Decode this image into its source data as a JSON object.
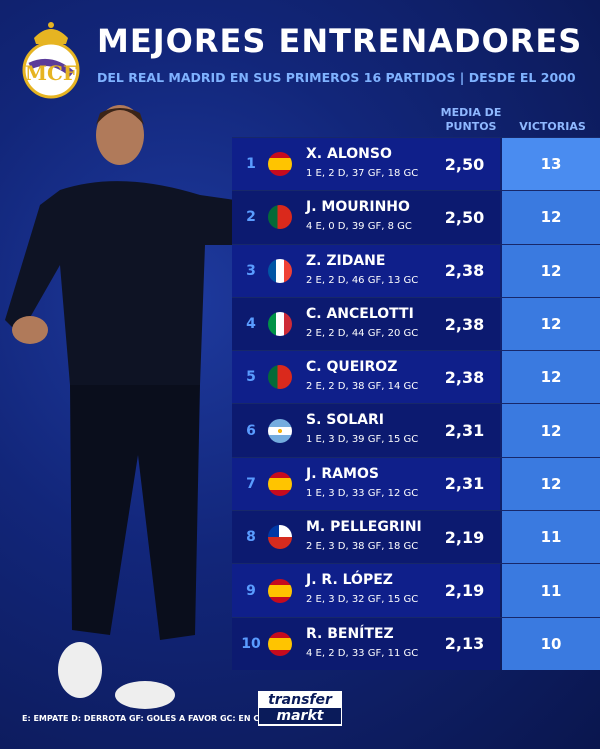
{
  "header": {
    "title": "MEJORES ENTRENADORES",
    "subtitle": "DEL REAL MADRID EN SUS PRIMEROS 16 PARTIDOS | DESDE EL 2000"
  },
  "columns": {
    "avg": "MEDIA DE PUNTOS",
    "avg_l1": "MEDIA DE",
    "avg_l2": "PUNTOS",
    "wins": "VICTORIAS"
  },
  "rows": [
    {
      "rank": "1",
      "flag": "spain",
      "name": "X. ALONSO",
      "stats": "1 E,  2 D, 37 GF, 18 GC",
      "avg": "2,50",
      "wins": "13"
    },
    {
      "rank": "2",
      "flag": "portugal",
      "name": "J. MOURINHO",
      "stats": "4 E, 0 D, 39 GF, 8 GC",
      "avg": "2,50",
      "wins": "12"
    },
    {
      "rank": "3",
      "flag": "france",
      "name": "Z. ZIDANE",
      "stats": "2 E, 2 D, 46 GF, 13 GC",
      "avg": "2,38",
      "wins": "12"
    },
    {
      "rank": "4",
      "flag": "italy",
      "name": "C. ANCELOTTI",
      "stats": "2 E, 2 D, 44 GF, 20 GC",
      "avg": "2,38",
      "wins": "12"
    },
    {
      "rank": "5",
      "flag": "portugal",
      "name": "C. QUEIROZ",
      "stats": "2 E, 2 D, 38 GF, 14 GC",
      "avg": "2,38",
      "wins": "12"
    },
    {
      "rank": "6",
      "flag": "argentina",
      "name": "S. SOLARI",
      "stats": "1 E, 3 D, 39 GF, 15 GC",
      "avg": "2,31",
      "wins": "12"
    },
    {
      "rank": "7",
      "flag": "spain",
      "name": "J. RAMOS",
      "stats": "1 E, 3 D, 33 GF, 12 GC",
      "avg": "2,31",
      "wins": "12"
    },
    {
      "rank": "8",
      "flag": "chile",
      "name": "M. PELLEGRINI",
      "stats": "2 E, 3 D, 38 GF, 18 GC",
      "avg": "2,19",
      "wins": "11"
    },
    {
      "rank": "9",
      "flag": "spain",
      "name": "J. R. LÓPEZ",
      "stats": "2 E, 3 D, 32 GF, 15 GC",
      "avg": "2,19",
      "wins": "11"
    },
    {
      "rank": "10",
      "flag": "spain",
      "name": "R. BENÍTEZ",
      "stats": "4 E, 2 D, 33 GF, 11 GC",
      "avg": "2,13",
      "wins": "10"
    }
  ],
  "footer": {
    "legend": "E: EMPATE D: DERROTA GF: GOLES A FAVOR GC: EN CONTRA"
  },
  "brand": {
    "line1": "transfer",
    "line2": "markt"
  },
  "colors": {
    "accent": "#4a8cf0",
    "background": "#0f1f8a",
    "label": "#8fb8ff"
  }
}
